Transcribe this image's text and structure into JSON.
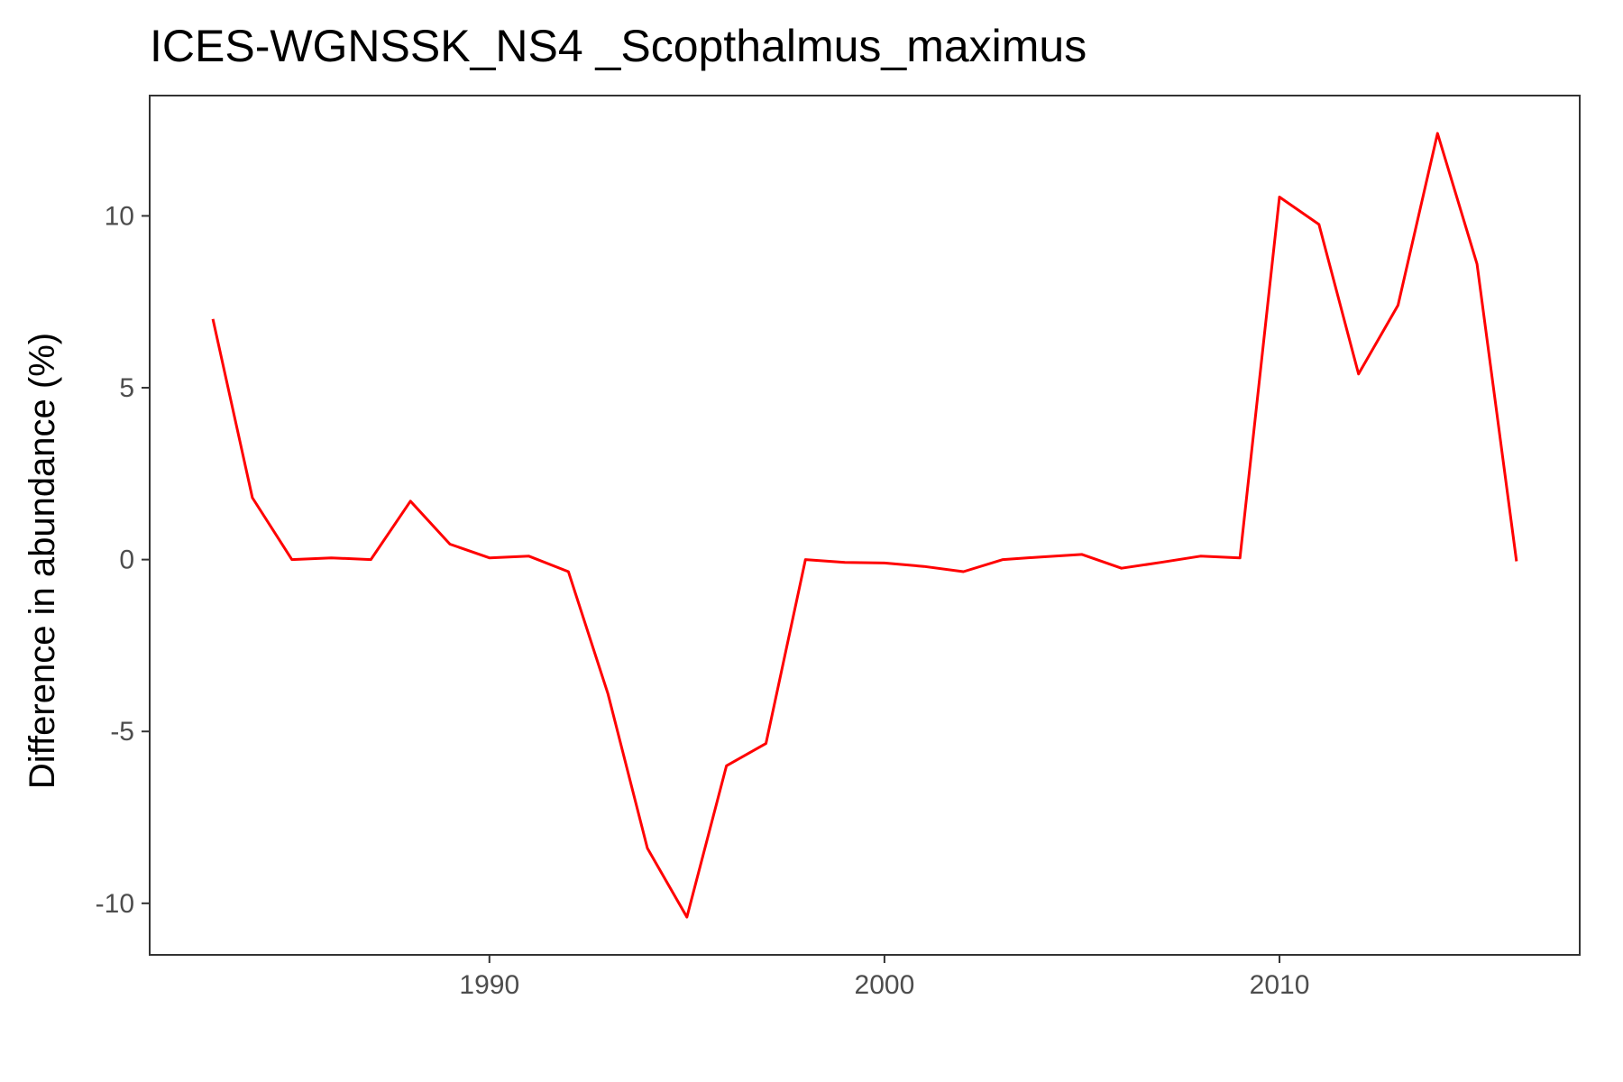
{
  "chart_data": {
    "type": "line",
    "title": "ICES-WGNSSK_NS4 _Scopthalmus_maximus",
    "xlabel": "",
    "ylabel": "Difference in abundance (%)",
    "xlim": [
      1981.4,
      2017.6
    ],
    "ylim": [
      -11.5,
      13.5
    ],
    "x_ticks": [
      1990,
      2000,
      2010
    ],
    "x_tick_labels": [
      "1990",
      "2000",
      "2010"
    ],
    "y_ticks": [
      -10,
      -5,
      0,
      5,
      10
    ],
    "y_tick_labels": [
      "-10",
      "-5",
      "0",
      "5",
      "10"
    ],
    "grid": false,
    "legend": "none",
    "colors": {
      "line": "#ff0000",
      "panel_border": "#333333",
      "tick_label": "#4d4d4d"
    },
    "series": [
      {
        "x": [
          1983,
          1984,
          1985,
          1986,
          1987,
          1988,
          1989,
          1990,
          1991,
          1992,
          1993,
          1994,
          1995,
          1996,
          1997,
          1998,
          1999,
          2000,
          2001,
          2002,
          2003,
          2004,
          2005,
          2006,
          2007,
          2008,
          2009,
          2010,
          2011,
          2012,
          2013,
          2014,
          2015,
          2016
        ],
        "values": [
          7.0,
          1.8,
          0.0,
          0.05,
          0.0,
          1.7,
          0.45,
          0.05,
          0.1,
          -0.35,
          -3.9,
          -8.4,
          -10.4,
          -6.0,
          -5.35,
          0.0,
          -0.08,
          -0.1,
          -0.2,
          -0.35,
          0.0,
          0.08,
          0.15,
          -0.25,
          -0.08,
          0.1,
          0.05,
          10.55,
          9.75,
          5.4,
          7.4,
          12.4,
          8.6,
          -0.05
        ]
      }
    ]
  }
}
